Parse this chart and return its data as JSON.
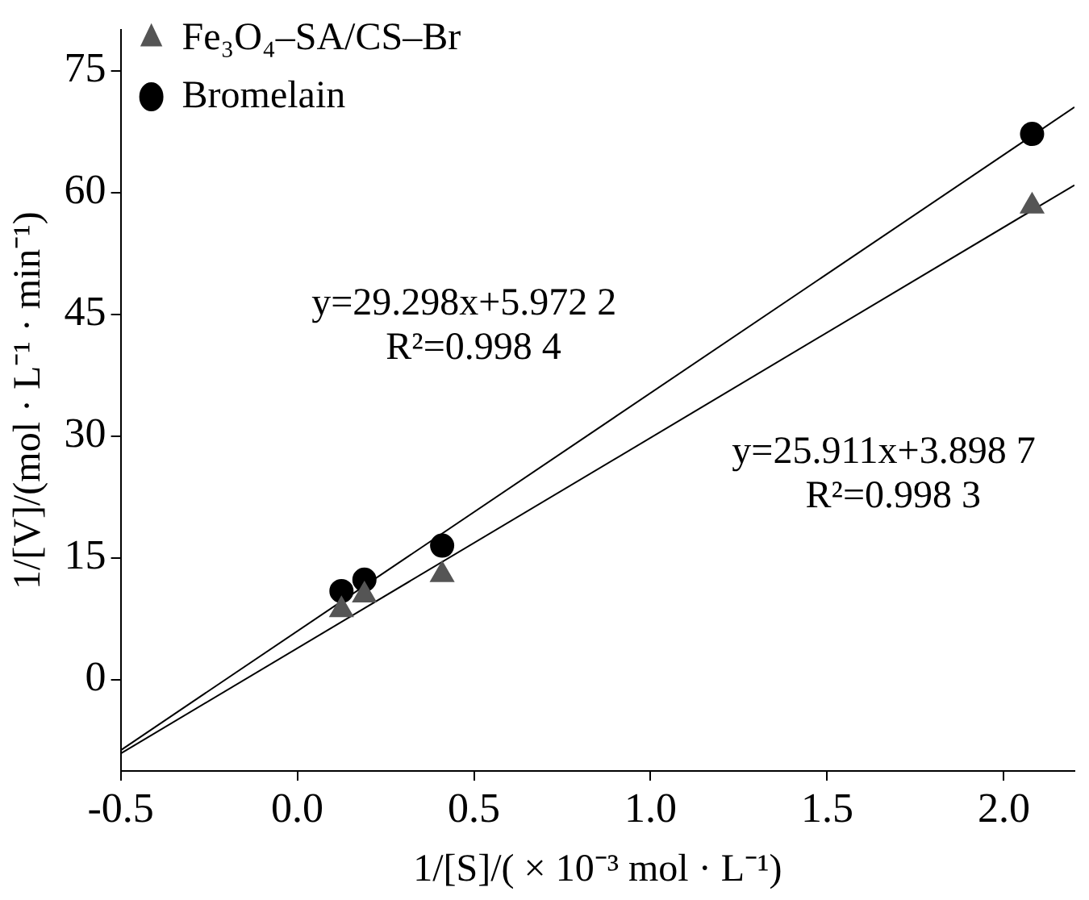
{
  "chart_data": {
    "type": "scatter",
    "xlabel": "1/[S]/( × 10⁻³ mol · L⁻¹)",
    "ylabel": "1/[V]/(mol · L⁻¹ · min⁻¹)",
    "xlim": [
      -0.5,
      2.2
    ],
    "xticks": [
      -0.5,
      {
        "value": 0,
        "label": "0.0"
      },
      0.5,
      {
        "value": 1,
        "label": "1.0"
      },
      1.5,
      {
        "value": 2,
        "label": "2.0"
      }
    ],
    "ylim": [
      -11.25,
      80
    ],
    "yticks": [
      0,
      15,
      30,
      45,
      60,
      75
    ],
    "grid": false,
    "legend": "top left",
    "series": [
      {
        "name": "Fe₃O₄–SA/CS–Br",
        "color": "#555555",
        "marker": "triangle",
        "x": [
          0.125,
          0.19,
          0.41,
          2.08
        ],
        "values": [
          8.6,
          10.4,
          12.9,
          58.3
        ]
      },
      {
        "name": "Bromelain",
        "color": "#000000",
        "marker": "circle",
        "x": [
          0.125,
          0.19,
          0.41,
          2.08
        ],
        "values": [
          10.9,
          12.3,
          16.5,
          67.2
        ]
      },
      {
        "type": "line",
        "color": "#000000",
        "marker": "none",
        "x": [
          -0.5,
          2.2
        ],
        "values": [
          -8.7,
          70.5
        ]
      },
      {
        "type": "line",
        "color": "#000000",
        "marker": "none",
        "x": [
          -0.5,
          2.2
        ],
        "values": [
          -9.1,
          60.9
        ]
      }
    ],
    "annotations": [
      "y=29.298x+5.972 2",
      "R²=0.998 4",
      "y=25.911x+3.898 7",
      "R²=0.998 3"
    ]
  }
}
